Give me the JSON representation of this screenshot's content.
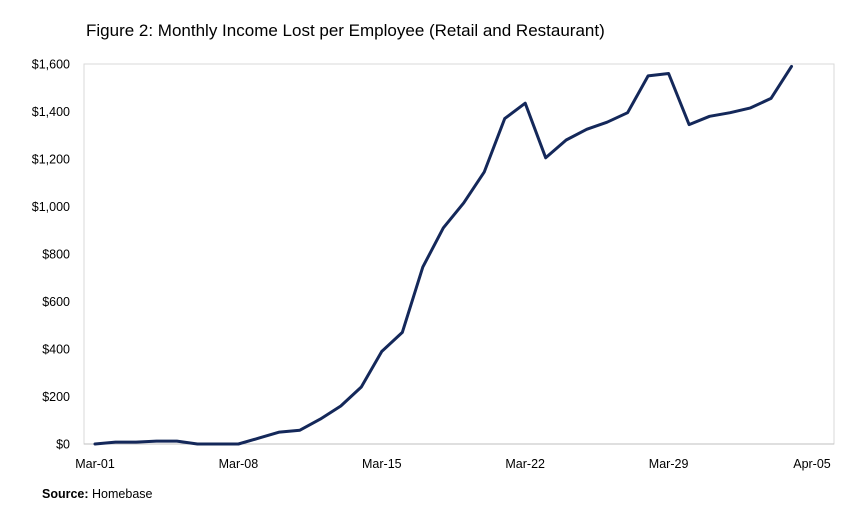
{
  "chart_data": {
    "type": "line",
    "title": "Figure 2: Monthly Income Lost per Employee (Retail and Restaurant)",
    "xlabel": "",
    "ylabel": "",
    "x_tick_labels": [
      "Mar-01",
      "Mar-08",
      "Mar-15",
      "Mar-22",
      "Mar-29",
      "Apr-05"
    ],
    "y_tick_labels": [
      "$0",
      "$200",
      "$400",
      "$600",
      "$800",
      "$1,000",
      "$1,200",
      "$1,400",
      "$1,600"
    ],
    "ylim": [
      0,
      1600
    ],
    "xlim": [
      "2020-03-01",
      "2020-04-05"
    ],
    "grid": false,
    "legend": "none",
    "line_color": "#14285a",
    "series": [
      {
        "x": [
          "2020-03-01",
          "2020-03-02",
          "2020-03-03",
          "2020-03-04",
          "2020-03-05",
          "2020-03-06",
          "2020-03-07",
          "2020-03-08",
          "2020-03-09",
          "2020-03-10",
          "2020-03-11",
          "2020-03-12",
          "2020-03-13",
          "2020-03-14",
          "2020-03-15",
          "2020-03-16",
          "2020-03-17",
          "2020-03-18",
          "2020-03-19",
          "2020-03-20",
          "2020-03-21",
          "2020-03-22",
          "2020-03-23",
          "2020-03-24",
          "2020-03-25",
          "2020-03-26",
          "2020-03-27",
          "2020-03-28",
          "2020-03-29",
          "2020-03-30",
          "2020-03-31",
          "2020-04-01",
          "2020-04-02",
          "2020-04-03",
          "2020-04-04"
        ],
        "values": [
          0,
          8,
          8,
          12,
          12,
          0,
          0,
          0,
          25,
          50,
          58,
          105,
          160,
          240,
          390,
          470,
          745,
          910,
          1015,
          1145,
          1370,
          1435,
          1205,
          1280,
          1325,
          1355,
          1395,
          1550,
          1560,
          1345,
          1380,
          1395,
          1415,
          1455,
          1590
        ]
      }
    ]
  },
  "source": {
    "label": "Source:",
    "text": " Homebase"
  }
}
